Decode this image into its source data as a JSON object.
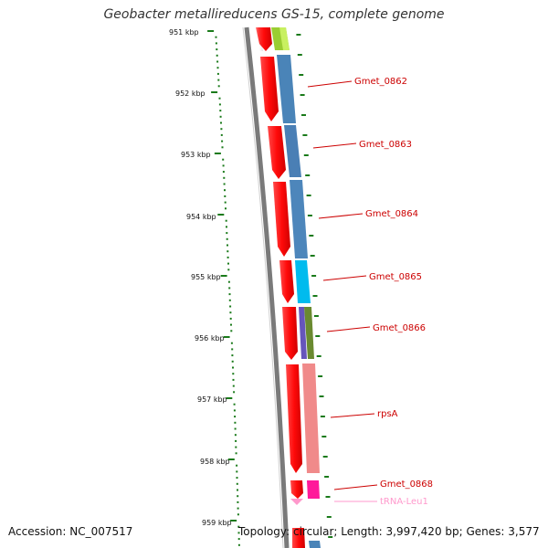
{
  "title": "Geobacter metallireducens GS-15, complete genome",
  "accession_text": "Accession: NC_007517",
  "summary_text": "Topology: circular; Length: 3,997,420 bp; Genes: 3,577",
  "colors": {
    "backbone": "#7a7a7a",
    "tick": "#1a7a1a",
    "cds_forward": "#ff1010",
    "label": "#cc0000",
    "trna": "#ff99cc"
  },
  "kbp_labels": [
    "951 kbp",
    "952 kbp",
    "953 kbp",
    "954 kbp",
    "955 kbp",
    "956 kbp",
    "957 kbp",
    "958 kbp",
    "959 kbp"
  ],
  "genes": [
    {
      "name": "Gmet_0862",
      "color": "#4a84b8"
    },
    {
      "name": "Gmet_0863",
      "color": "#4a7fb5"
    },
    {
      "name": "Gmet_0864",
      "color": "#4d86bb"
    },
    {
      "name": "Gmet_0865",
      "color": "#00bbee"
    },
    {
      "name": "Gmet_0866",
      "color": "#6a8a30"
    },
    {
      "name": "rpsA",
      "color": "#f08a8a"
    },
    {
      "name": "Gmet_0868",
      "color": "#ff1a9a"
    },
    {
      "name": "tRNA-Leu1",
      "color": "#ff99cc"
    }
  ]
}
